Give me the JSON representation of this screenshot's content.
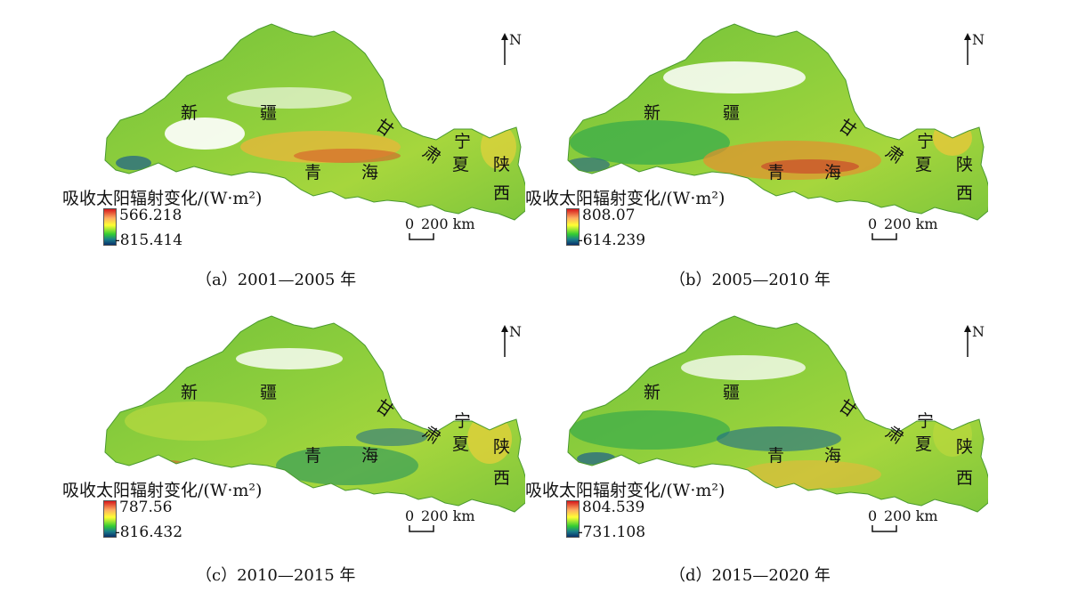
{
  "legend_title": "吸收太阳辐射变化/(W·m²)",
  "north_label": "N",
  "scale_zero": "0",
  "scale_distance": "200 km",
  "place_labels": {
    "xinjiang_1": "新",
    "xinjiang_2": "疆",
    "gansu_1": "甘",
    "gansu_2": "肃",
    "qinghai_1": "青",
    "qinghai_2": "海",
    "ningxia_1": "宁",
    "ningxia_2": "夏",
    "shaanxi_1": "陕",
    "shaanxi_2": "西"
  },
  "color_ramp": [
    "#08306b",
    "#1a7f8a",
    "#33cc33",
    "#ffff33",
    "#fdae61",
    "#d7191c"
  ],
  "panels": [
    {
      "caption": "（a）2001—2005 年",
      "legend_max": "566.218",
      "legend_min": "-815.414"
    },
    {
      "caption": "（b）2005—2010 年",
      "legend_max": "808.07",
      "legend_min": "-614.239"
    },
    {
      "caption": "（c）2010—2015 年",
      "legend_max": "787.56",
      "legend_min": "-816.432"
    },
    {
      "caption": "（d）2015—2020 年",
      "legend_max": "804.539",
      "legend_min": "-731.108"
    }
  ]
}
